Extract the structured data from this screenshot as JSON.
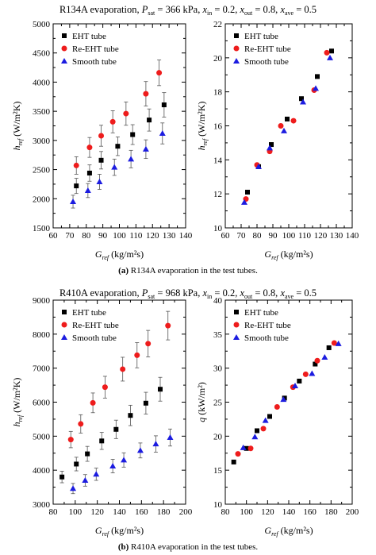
{
  "figure": {
    "title_a": {
      "lead": "R134A evaporation, ",
      "p": "P",
      "p_sub": "sat",
      "p_val": " = 366 kPa, ",
      "x1": "x",
      "x1_sub": "in",
      "x1_val": " = 0.2, ",
      "x2": "x",
      "x2_sub": "out",
      "x2_val": " = 0.8, ",
      "x3": "x",
      "x3_sub": "ave",
      "x3_val": " = 0.5"
    },
    "title_b": {
      "lead": "R410A evaporation, ",
      "p": "P",
      "p_sub": "sat",
      "p_val": " = 968 kPa, ",
      "x1": "x",
      "x1_sub": "in",
      "x1_val": " = 0.2, ",
      "x2": "x",
      "x2_sub": "out",
      "x2_val": " = 0.8, ",
      "x3": "x",
      "x3_sub": "ave",
      "x3_val": " = 0.5"
    },
    "caption_a": {
      "tag": "(a)",
      "text": " R134A evaporation in the test tubes."
    },
    "caption_b": {
      "tag": "(b)",
      "text": " R410A evaporation in the test tubes."
    },
    "colors": {
      "eht": "#000000",
      "re_eht": "#ee1c1c",
      "smooth": "#1c1ce0",
      "error_bar": "#555555"
    }
  },
  "chart_data": [
    {
      "id": "a-left",
      "type": "scatter",
      "xlabel": {
        "main": "G",
        "sub": "ref",
        "units": " (kg/m²s)"
      },
      "ylabel": {
        "main": "h",
        "sub": "ref",
        "units": " (W/m²K)"
      },
      "xlim": [
        60,
        140
      ],
      "ylim": [
        1500,
        5000
      ],
      "xticks": [
        "60",
        "70",
        "80",
        "90",
        "100",
        "110",
        "120",
        "130",
        "140"
      ],
      "yticks": [
        "1500",
        "2000",
        "2500",
        "3000",
        "3500",
        "4000",
        "4500",
        "5000"
      ],
      "legend": {
        "placement": "top-left",
        "entries": [
          "EHT tube",
          "Re-EHT tube",
          "Smooth tube"
        ]
      },
      "series": [
        {
          "name": "EHT tube",
          "marker": "square",
          "x": [
            74,
            82,
            89,
            99,
            108,
            118,
            127
          ],
          "y": [
            2220,
            2440,
            2660,
            2900,
            3100,
            3350,
            3610
          ],
          "err": [
            130,
            140,
            150,
            160,
            170,
            190,
            210
          ]
        },
        {
          "name": "Re-EHT tube",
          "marker": "circle",
          "x": [
            74,
            82,
            89,
            96,
            104,
            116,
            124
          ],
          "y": [
            2570,
            2880,
            3080,
            3320,
            3460,
            3800,
            4160
          ],
          "err": [
            150,
            170,
            180,
            190,
            200,
            210,
            220
          ]
        },
        {
          "name": "Smooth tube",
          "marker": "triangle",
          "x": [
            72,
            81,
            88,
            97,
            107,
            116,
            126
          ],
          "y": [
            1950,
            2140,
            2290,
            2540,
            2680,
            2850,
            3120
          ],
          "err": [
            110,
            120,
            130,
            140,
            150,
            160,
            180
          ]
        }
      ]
    },
    {
      "id": "a-right",
      "type": "scatter",
      "xlabel": {
        "main": "G",
        "sub": "ref",
        "units": " (kg/m²s)"
      },
      "ylabel": {
        "main": "h",
        "sub": "ref",
        "units": " (W/m²K)"
      },
      "xlim": [
        60,
        140
      ],
      "ylim": [
        10,
        22
      ],
      "xticks": [
        "60",
        "70",
        "80",
        "90",
        "100",
        "110",
        "120",
        "130",
        "140"
      ],
      "yticks": [
        "10",
        "12",
        "14",
        "16",
        "18",
        "20",
        "22"
      ],
      "legend": {
        "placement": "top-left",
        "entries": [
          "EHT tube",
          "Re-EHT tube",
          "Smooth tube"
        ]
      },
      "series": [
        {
          "name": "EHT tube",
          "marker": "square",
          "x": [
            74,
            81,
            89,
            99,
            108,
            118,
            127
          ],
          "y": [
            12.1,
            13.6,
            14.9,
            16.4,
            17.6,
            18.9,
            20.4
          ]
        },
        {
          "name": "Re-EHT tube",
          "marker": "circle",
          "x": [
            73,
            80,
            88,
            95,
            103,
            116,
            124
          ],
          "y": [
            11.7,
            13.7,
            14.5,
            16.0,
            16.3,
            18.1,
            20.3
          ]
        },
        {
          "name": "Smooth tube",
          "marker": "triangle",
          "x": [
            72,
            81,
            88,
            97,
            109,
            117,
            126
          ],
          "y": [
            11.5,
            13.6,
            14.7,
            15.7,
            17.4,
            18.2,
            20.0
          ]
        }
      ]
    },
    {
      "id": "b-left",
      "type": "scatter",
      "xlabel": {
        "main": "G",
        "sub": "ref",
        "units": " (kg/m²s)"
      },
      "ylabel": {
        "main": "h",
        "sub": "ref",
        "units": " (W/m²K)"
      },
      "xlim": [
        80,
        200
      ],
      "ylim": [
        3000,
        9000
      ],
      "xticks": [
        "80",
        "100",
        "120",
        "140",
        "160",
        "180",
        "200"
      ],
      "yticks": [
        "3000",
        "4000",
        "5000",
        "6000",
        "7000",
        "8000",
        "9000"
      ],
      "legend": {
        "placement": "top-left",
        "entries": [
          "EHT tube",
          "Re-EHT tube",
          "Smooth tube"
        ]
      },
      "series": [
        {
          "name": "EHT tube",
          "marker": "square",
          "x": [
            88,
            101,
            111,
            124,
            137,
            150,
            164,
            177
          ],
          "y": [
            3800,
            4180,
            4480,
            4860,
            5200,
            5610,
            5970,
            6380
          ],
          "err": [
            170,
            200,
            220,
            250,
            270,
            300,
            320,
            350
          ]
        },
        {
          "name": "Re-EHT tube",
          "marker": "circle",
          "x": [
            96,
            105,
            116,
            127,
            143,
            156,
            166,
            184
          ],
          "y": [
            4900,
            5360,
            5980,
            6440,
            6970,
            7380,
            7720,
            8250
          ],
          "err": [
            240,
            270,
            290,
            320,
            350,
            370,
            390,
            420
          ]
        },
        {
          "name": "Smooth tube",
          "marker": "triangle",
          "x": [
            98,
            109,
            119,
            134,
            144,
            159,
            173,
            186
          ],
          "y": [
            3460,
            3700,
            3880,
            4120,
            4300,
            4580,
            4770,
            4960
          ],
          "err": [
            150,
            170,
            180,
            200,
            210,
            220,
            240,
            250
          ]
        }
      ]
    },
    {
      "id": "b-right",
      "type": "scatter",
      "xlabel": {
        "main": "G",
        "sub": "ref",
        "units": " (kg/m²s)"
      },
      "ylabel": {
        "main": "q",
        "sub": "",
        "units": " (kW/m²)"
      },
      "xlim": [
        80,
        200
      ],
      "ylim": [
        10,
        40
      ],
      "xticks": [
        "80",
        "100",
        "120",
        "140",
        "160",
        "180",
        "200"
      ],
      "yticks": [
        "10",
        "15",
        "20",
        "25",
        "30",
        "35",
        "40"
      ],
      "legend": {
        "placement": "top-left",
        "entries": [
          "EHT tube",
          "Re-EHT tube",
          "Smooth tube"
        ]
      },
      "series": [
        {
          "name": "EHT tube",
          "marker": "square",
          "x": [
            88,
            100,
            110,
            122,
            136,
            150,
            165,
            178
          ],
          "y": [
            16.2,
            18.2,
            20.8,
            22.9,
            25.6,
            28.1,
            30.6,
            33.0
          ],
          "err": [
            0,
            0,
            0,
            0,
            0,
            0,
            0,
            0
          ]
        },
        {
          "name": "Re-EHT tube",
          "marker": "circle",
          "x": [
            92,
            104,
            116,
            129,
            144,
            156,
            167,
            183
          ],
          "y": [
            17.4,
            18.2,
            21.1,
            24.3,
            27.2,
            29.1,
            31.1,
            33.7
          ]
        },
        {
          "name": "Smooth tube",
          "marker": "triangle",
          "x": [
            97,
            108,
            118,
            135,
            146,
            162,
            174,
            187
          ],
          "y": [
            18.3,
            19.9,
            22.3,
            25.4,
            27.4,
            29.2,
            31.6,
            33.6
          ]
        }
      ]
    }
  ]
}
